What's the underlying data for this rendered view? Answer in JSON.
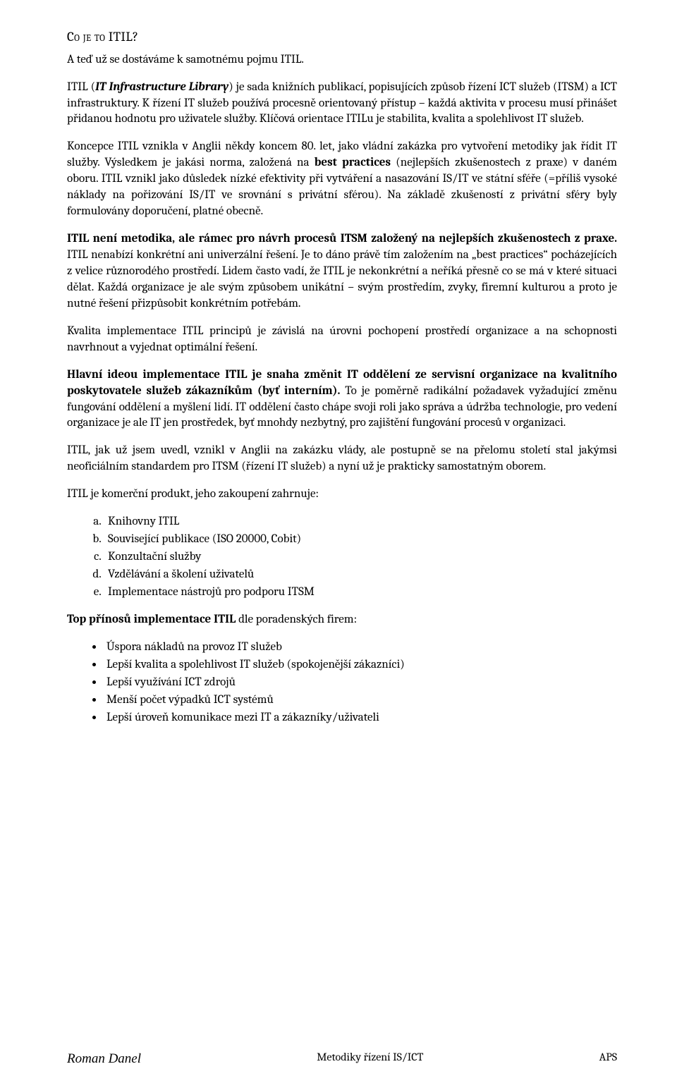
{
  "heading": "Co je to ITIL?",
  "intro": "A teď už se dostáváme k samotnému pojmu ITIL.",
  "p1_start": "ITIL (",
  "p1_em": "IT Infrastructure Library",
  "p1_cont1": ") je sada knižních publikací, popisujících způsob řízení ICT služeb (ITSM) a ICT infrastruktury. K řízení IT služeb používá procesně orientovaný přístup – každá aktivita v procesu musí přinášet přidanou hodnotu pro uživatele služby. Klíčová orientace ITILu je stabilita, kvalita a spolehlivost IT služeb.",
  "p2_plain1": "Koncepce ITIL vznikla v Anglii někdy koncem 80. let, jako vládní zakázka pro vytvoření metodiky jak řídit IT služby. Výsledkem je jakási norma, založená na ",
  "p2_bold1": "best practices",
  "p2_plain2": " (nejlepších zkušenostech z praxe) v daném oboru. ITIL vznikl jako důsledek nízké efektivity při vytváření a nasazování IS/IT ve státní sféře (=příliš vysoké náklady na pořizování IS/IT ve srovnání s privátní sférou). Na základě zkušeností z privátní sféry byly formulovány doporučení, platné obecně.",
  "p3_bold1": "ITIL není metodika, ale rámec pro návrh procesů ITSM založený na nejlepších zkušenostech z praxe.",
  "p3_plain1": " ITIL nenabízí konkrétní ani univerzální řešení.  Je to dáno právě tím založením na „best practices“ pocházejících z velice různorodého prostředí. Lidem často vadí, že ITIL je nekonkrétní a neříká přesně co se má v které situaci dělat. Každá organizace je ale svým způsobem unikátní – svým prostředím, zvyky, firemní kulturou a proto je nutné řešení přizpůsobit konkrétním potřebám.",
  "p4": "Kvalita implementace ITIL principů je závislá na úrovni pochopení prostředí organizace a na schopnosti navrhnout a vyjednat optimální řešení.",
  "p5_bold1": "Hlavní ideou implementace ITIL je snaha změnit IT oddělení ze servisní organizace na kvalitního poskytovatele služeb zákazníkům (byť interním).",
  "p5_plain1": "  To je poměrně radikální požadavek vyžadující změnu fungování oddělení a myšlení lidí. IT oddělení často chápe svoji roli jako správa a údržba technologie, pro vedení organizace je ale IT jen prostředek, byť mnohdy nezbytný, pro zajištění fungování procesů v organizaci.",
  "p6": "ITIL, jak už jsem uvedl, vznikl v Anglii na zakázku vlády, ale postupně se na přelomu století stal jakýmsi neoficiálním standardem pro ITSM (řízení IT služeb) a nyní už je prakticky samostatným oborem.",
  "p7": "ITIL je komerční produkt, jeho zakoupení zahrnuje:",
  "list_alpha": [
    "Knihovny ITIL",
    "Související publikace (ISO 20000, Cobit)",
    "Konzultační služby",
    "Vzdělávání a školení uživatelů",
    "Implementace nástrojů pro podporu ITSM"
  ],
  "p8_bold": "Top přínosů implementace ITIL",
  "p8_plain": " dle poradenských firem:",
  "list_bullets": [
    "Úspora nákladů na provoz IT služeb",
    "Lepší kvalita a spolehlivost IT služeb (spokojenější zákazníci)",
    "Lepší využívání ICT zdrojů",
    "Menší počet výpadků ICT systémů",
    "Lepší úroveň komunikace mezi IT a zákazníky/uživateli"
  ],
  "footer_left": "Roman Danel",
  "footer_center": "Metodiky řízení IS/ICT",
  "footer_right": "APS"
}
